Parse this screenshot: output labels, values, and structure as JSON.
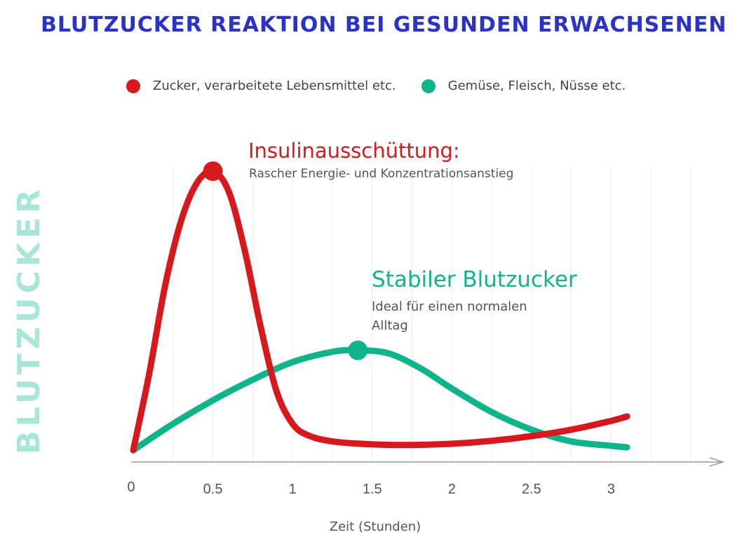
{
  "title": "BLUTZUCKER REAKTION BEI GESUNDEN ERWACHSENEN",
  "chart_data": {
    "type": "line",
    "ylabel": "BLUTZUCKER",
    "xlabel": "Zeit (Stunden)",
    "x_ticks": [
      {
        "value": 0,
        "label": "0"
      },
      {
        "value": 0.5,
        "label": "0.5"
      },
      {
        "value": 1,
        "label": "1"
      },
      {
        "value": 1.5,
        "label": "1.5"
      },
      {
        "value": 2,
        "label": "2"
      },
      {
        "value": 2.5,
        "label": "2.5"
      },
      {
        "value": 3,
        "label": "3"
      }
    ],
    "xlim": [
      0,
      3.72
    ],
    "ylim": [
      0,
      100
    ],
    "grid": "vertical",
    "legend_position": "top",
    "series": [
      {
        "name": "Zucker, verarbeitete Lebensmittel etc.",
        "color": "#d7191e",
        "x": [
          0,
          0.1,
          0.2,
          0.3,
          0.4,
          0.5,
          0.6,
          0.7,
          0.8,
          0.9,
          1.0,
          1.1,
          1.25,
          1.5,
          1.75,
          2.0,
          2.25,
          2.5,
          2.75,
          3.0,
          3.1
        ],
        "y": [
          4,
          30,
          60,
          82,
          95,
          99,
          92,
          72,
          46,
          24,
          13,
          9,
          7,
          6,
          5.8,
          6.2,
          7.2,
          8.8,
          11,
          14,
          15.5
        ],
        "peak": {
          "x": 0.5,
          "y": 99
        }
      },
      {
        "name": "Gemüse, Fleisch, Nüsse etc.",
        "color": "#10b48a",
        "x": [
          0,
          0.25,
          0.5,
          0.75,
          1.0,
          1.25,
          1.41,
          1.6,
          1.8,
          2.0,
          2.25,
          2.5,
          2.75,
          3.0,
          3.1
        ],
        "y": [
          4,
          13,
          21,
          28,
          34,
          37.5,
          38,
          37,
          32,
          25,
          17,
          11,
          7,
          5.5,
          5
        ],
        "peak": {
          "x": 1.41,
          "y": 38
        }
      }
    ],
    "annotations": [
      {
        "series": 0,
        "title": "Insulinausschüttung:",
        "text": "Rascher Energie- und Konzentrationsanstieg"
      },
      {
        "series": 1,
        "title": "Stabiler Blutzucker",
        "text_lines": [
          "Ideal für einen normalen",
          "Alltag"
        ]
      }
    ]
  }
}
